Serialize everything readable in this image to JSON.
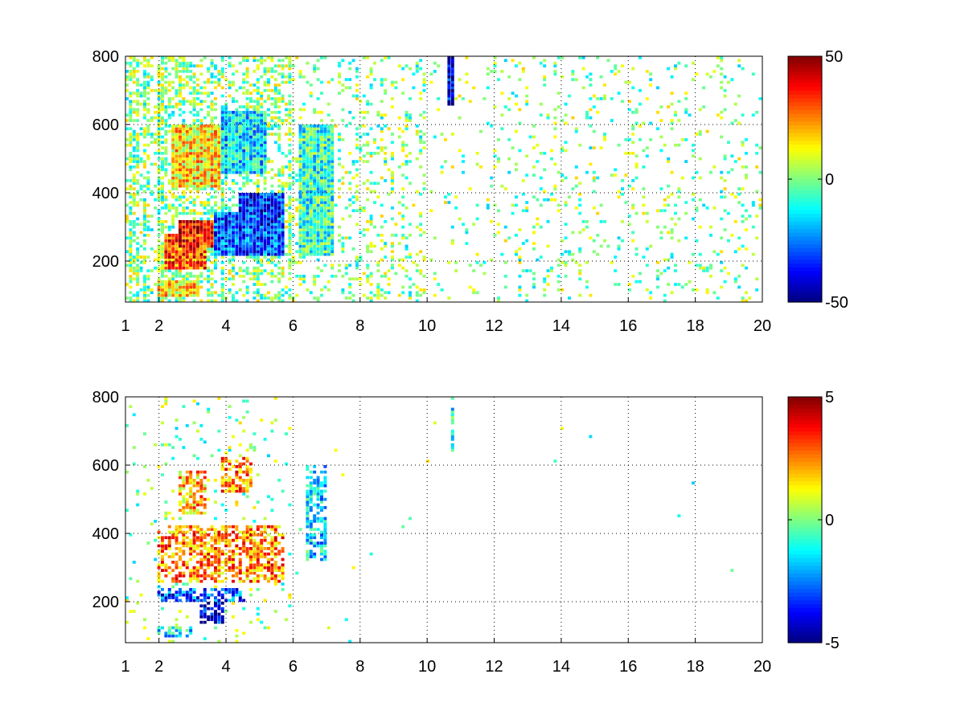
{
  "chart_data": [
    {
      "type": "heatmap",
      "title": "",
      "xlabel": "",
      "ylabel": "",
      "xlim": [
        1,
        20
      ],
      "ylim": [
        80,
        800
      ],
      "xticks": [
        1,
        2,
        4,
        6,
        8,
        10,
        12,
        14,
        16,
        18,
        20
      ],
      "yticks": [
        200,
        400,
        600,
        800
      ],
      "grid": true,
      "colormap": "jet",
      "colorbar": {
        "min": -50,
        "max": 50,
        "ticks": [
          50,
          0,
          -50
        ]
      },
      "missing_color": "#ffffff",
      "features": [
        {
          "x": [
            2.2,
            3.4
          ],
          "y": [
            180,
            280
          ],
          "value": 30
        },
        {
          "x": [
            2.6,
            3.6
          ],
          "y": [
            240,
            320
          ],
          "value": 40
        },
        {
          "x": [
            3.6,
            5.8
          ],
          "y": [
            220,
            340
          ],
          "value": -30
        },
        {
          "x": [
            4.4,
            5.8
          ],
          "y": [
            300,
            400
          ],
          "value": -35
        },
        {
          "x": [
            2.4,
            3.8
          ],
          "y": [
            420,
            600
          ],
          "value": 15
        },
        {
          "x": [
            3.8,
            5.2
          ],
          "y": [
            460,
            640
          ],
          "value": -15
        },
        {
          "x": [
            2.0,
            3.2
          ],
          "y": [
            100,
            140
          ],
          "value": 15
        },
        {
          "x": [
            6.2,
            7.2
          ],
          "y": [
            220,
            600
          ],
          "value": -8
        },
        {
          "x": [
            10.6,
            10.8
          ],
          "y": [
            660,
            800
          ],
          "value": -40
        }
      ]
    },
    {
      "type": "heatmap",
      "title": "",
      "xlabel": "",
      "ylabel": "",
      "xlim": [
        1,
        20
      ],
      "ylim": [
        80,
        800
      ],
      "xticks": [
        1,
        2,
        4,
        6,
        8,
        10,
        12,
        14,
        16,
        18,
        20
      ],
      "yticks": [
        200,
        400,
        600,
        800
      ],
      "grid": true,
      "colormap": "jet",
      "colorbar": {
        "min": -5,
        "max": 5,
        "ticks": [
          5,
          0,
          -5
        ]
      },
      "missing_color": "#ffffff",
      "features": [
        {
          "x": [
            2.0,
            5.8
          ],
          "y": [
            260,
            420
          ],
          "value": 2.5
        },
        {
          "x": [
            2.0,
            4.6
          ],
          "y": [
            200,
            240
          ],
          "value": -3
        },
        {
          "x": [
            3.2,
            4.0
          ],
          "y": [
            140,
            200
          ],
          "value": -4
        },
        {
          "x": [
            2.0,
            3.0
          ],
          "y": [
            100,
            130
          ],
          "value": -1.5
        },
        {
          "x": [
            2.6,
            3.4
          ],
          "y": [
            460,
            580
          ],
          "value": 2
        },
        {
          "x": [
            3.8,
            4.8
          ],
          "y": [
            520,
            620
          ],
          "value": 2.5
        },
        {
          "x": [
            6.4,
            7.0
          ],
          "y": [
            320,
            600
          ],
          "value": -1.5
        },
        {
          "x": [
            10.7,
            10.8
          ],
          "y": [
            640,
            800
          ],
          "value": -1
        }
      ]
    }
  ]
}
